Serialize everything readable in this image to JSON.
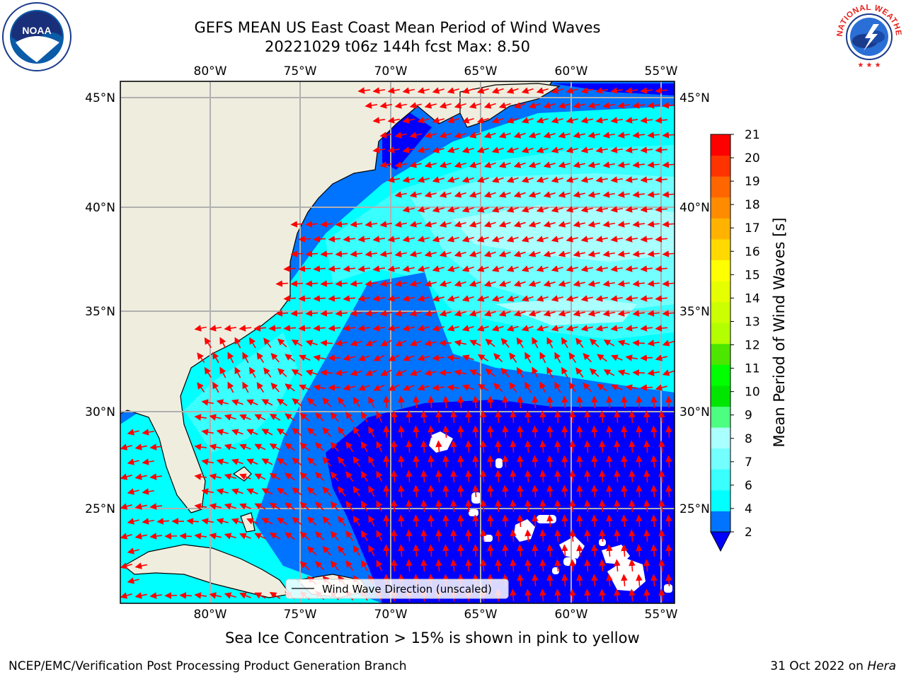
{
  "title": {
    "line1": "GEFS MEAN US East Coast Mean Period of Wind Waves",
    "line2": "20221029 t06z 144h fcst   Max: 8.50"
  },
  "subtitle": "Sea Ice Concentration > 15% is shown in pink to yellow",
  "footer": {
    "left": "NCEP/EMC/Verification Post Processing Product Generation Branch",
    "right_prefix": "31 Oct 2022 on ",
    "right_host": "Hera"
  },
  "logos": {
    "noaa": "NOAA",
    "nws": "NATIONAL WEATHER SERVICE"
  },
  "map": {
    "lon_labels": [
      "80°W",
      "75°W",
      "70°W",
      "65°W",
      "60°W",
      "55°W"
    ],
    "lat_labels": [
      "45°N",
      "40°N",
      "35°N",
      "30°N",
      "25°N"
    ],
    "legend_label": "Wind Wave Direction (unscaled)",
    "colors": {
      "land": "#efedde",
      "coast": "#000000",
      "grid": "#b0b0b0",
      "arrow": "#ff0000"
    }
  },
  "colorbar": {
    "label": "Mean Period of Wind Waves [s]",
    "tick_labels": [
      "2",
      "4",
      "6",
      "7",
      "8",
      "9",
      "10",
      "11",
      "12",
      "13",
      "14",
      "15",
      "16",
      "17",
      "18",
      "19",
      "20",
      "21"
    ],
    "colors": [
      "#0073ff",
      "#00ffff",
      "#39ffff",
      "#73ffff",
      "#aaffff",
      "#4cff80",
      "#00e600",
      "#00ff00",
      "#4ce600",
      "#b3ff00",
      "#ccff00",
      "#e6ff00",
      "#ffff00",
      "#ffd900",
      "#ffb300",
      "#ff8c00",
      "#ff6600",
      "#ff3300",
      "#ff0000"
    ],
    "under_color": "#0000ff"
  },
  "field_colors": {
    "lt2": "#0000ff",
    "2to4": "#0073ff",
    "4to6": "#00ffff",
    "6to7": "#39ffff",
    "7to8": "#73ffff",
    "8to9": "#aaffff",
    "missing": "#ffffff"
  }
}
